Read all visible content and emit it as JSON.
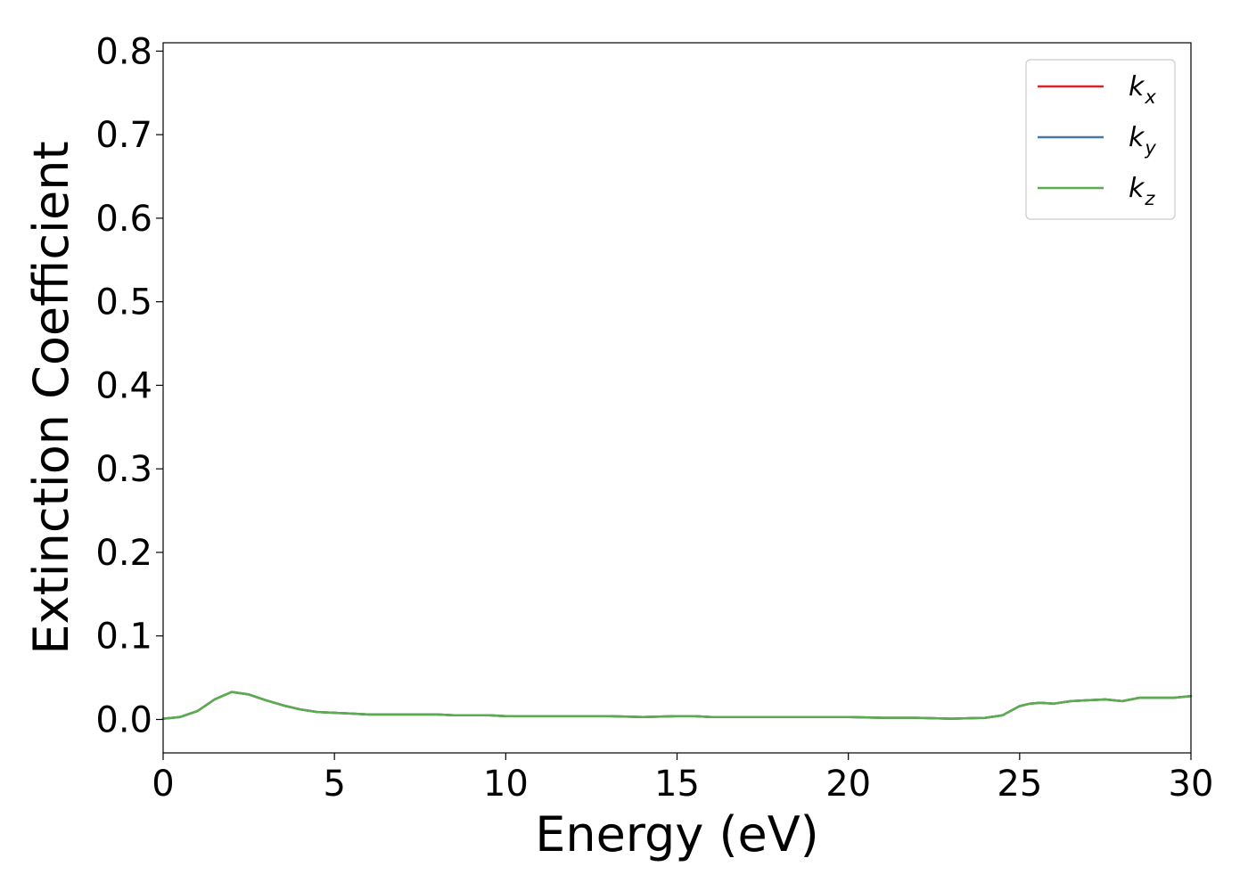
{
  "chart_data": {
    "type": "line",
    "title": "",
    "xlabel": "Energy (eV)",
    "ylabel": "Extinction Coefficient",
    "xlim": [
      0,
      30
    ],
    "ylim": [
      -0.04,
      0.81
    ],
    "xticks": [
      0,
      5,
      10,
      15,
      20,
      25,
      30
    ],
    "xtick_labels": [
      "0",
      "5",
      "10",
      "15",
      "20",
      "25",
      "30"
    ],
    "yticks": [
      0.0,
      0.1,
      0.2,
      0.3,
      0.4,
      0.5,
      0.6,
      0.7,
      0.8
    ],
    "ytick_labels": [
      "0.0",
      "0.1",
      "0.2",
      "0.3",
      "0.4",
      "0.5",
      "0.6",
      "0.7",
      "0.8"
    ],
    "grid": false,
    "legend_position": "top-right",
    "x": [
      0,
      0.5,
      1.0,
      1.5,
      2.0,
      2.5,
      3.0,
      3.5,
      4.0,
      4.5,
      5.0,
      5.5,
      6.0,
      6.5,
      7.0,
      7.5,
      8.0,
      8.5,
      9.0,
      9.5,
      10.0,
      11.0,
      12.0,
      13.0,
      14.0,
      15.0,
      15.5,
      16.0,
      17.0,
      18.0,
      19.0,
      20.0,
      21.0,
      22.0,
      23.0,
      24.0,
      24.5,
      25.0,
      25.3,
      25.6,
      26.0,
      26.5,
      27.0,
      27.5,
      28.0,
      28.5,
      29.0,
      29.5,
      30.0
    ],
    "series": [
      {
        "name_base": "k",
        "name_sub": "x",
        "color": "#d62728",
        "values": [
          0.001,
          0.003,
          0.01,
          0.024,
          0.033,
          0.03,
          0.023,
          0.017,
          0.012,
          0.009,
          0.008,
          0.007,
          0.006,
          0.006,
          0.006,
          0.006,
          0.006,
          0.005,
          0.005,
          0.005,
          0.004,
          0.004,
          0.004,
          0.004,
          0.003,
          0.004,
          0.004,
          0.003,
          0.003,
          0.003,
          0.003,
          0.003,
          0.002,
          0.002,
          0.001,
          0.002,
          0.005,
          0.016,
          0.019,
          0.02,
          0.019,
          0.022,
          0.023,
          0.024,
          0.022,
          0.026,
          0.026,
          0.026,
          0.028
        ]
      },
      {
        "name_base": "k",
        "name_sub": "y",
        "color": "#4477aa",
        "values": [
          0.001,
          0.003,
          0.01,
          0.024,
          0.033,
          0.03,
          0.023,
          0.017,
          0.012,
          0.009,
          0.008,
          0.007,
          0.006,
          0.006,
          0.006,
          0.006,
          0.006,
          0.005,
          0.005,
          0.005,
          0.004,
          0.004,
          0.004,
          0.004,
          0.003,
          0.004,
          0.004,
          0.003,
          0.003,
          0.003,
          0.003,
          0.003,
          0.002,
          0.002,
          0.001,
          0.002,
          0.005,
          0.016,
          0.019,
          0.02,
          0.019,
          0.022,
          0.023,
          0.024,
          0.022,
          0.026,
          0.026,
          0.026,
          0.028
        ]
      },
      {
        "name_base": "k",
        "name_sub": "z",
        "color": "#5aad4f",
        "values": [
          0.001,
          0.003,
          0.01,
          0.024,
          0.033,
          0.03,
          0.023,
          0.017,
          0.012,
          0.009,
          0.008,
          0.007,
          0.006,
          0.006,
          0.006,
          0.006,
          0.006,
          0.005,
          0.005,
          0.005,
          0.004,
          0.004,
          0.004,
          0.004,
          0.003,
          0.004,
          0.004,
          0.003,
          0.003,
          0.003,
          0.003,
          0.003,
          0.002,
          0.002,
          0.001,
          0.002,
          0.005,
          0.016,
          0.019,
          0.02,
          0.019,
          0.022,
          0.023,
          0.024,
          0.022,
          0.026,
          0.026,
          0.026,
          0.028
        ]
      }
    ]
  }
}
